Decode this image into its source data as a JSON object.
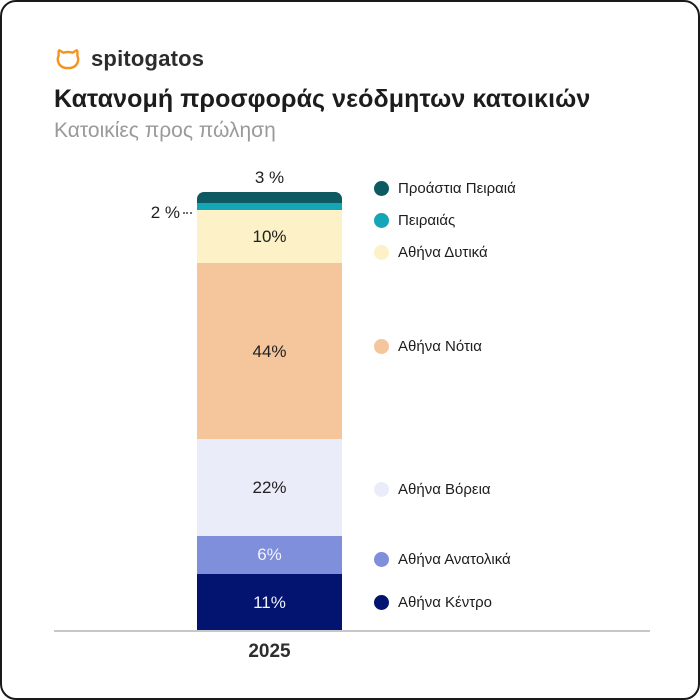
{
  "card": {
    "brand": {
      "name": "spitogatos",
      "logo_color": "#f6921e"
    },
    "title": "Κατανομή προσφοράς νεόδμητων κατοικιών",
    "subtitle": "Κατοικίες προς πώληση"
  },
  "chart_data": {
    "type": "bar",
    "stacked": true,
    "units": "%",
    "categories": [
      "2025"
    ],
    "x_tick_labels": [
      "2025"
    ],
    "series": [
      {
        "name": "Προάστια Πειραιά",
        "values": [
          3
        ],
        "color": "#0d5a63",
        "label": "3 %",
        "label_position": "above",
        "label_color": "#1f1f1f"
      },
      {
        "name": "Πειραιάς",
        "values": [
          2
        ],
        "color": "#14a6b8",
        "label": "2 %",
        "label_position": "left",
        "label_color": "#1f1f1f"
      },
      {
        "name": "Αθήνα Δυτικά",
        "values": [
          10
        ],
        "color": "#fcf1c7",
        "label": "10%",
        "label_position": "inside",
        "label_color": "#212121"
      },
      {
        "name": "Αθήνα Νότια",
        "values": [
          44
        ],
        "color": "#f5c59b",
        "label": "44%",
        "label_position": "inside",
        "label_color": "#212121"
      },
      {
        "name": "Αθήνα Βόρεια",
        "values": [
          22
        ],
        "color": "#ebecfa",
        "label": "22%",
        "label_position": "inside",
        "label_color": "#212121"
      },
      {
        "name": "Αθήνα Ανατολικά",
        "values": [
          6
        ],
        "color": "#7f8fdb",
        "label": "6%",
        "label_position": "inside",
        "label_color": "#f2f3fd"
      },
      {
        "name": "Αθήνα Κέντρο",
        "values": [
          11
        ],
        "color": "#02146f",
        "label": "11%",
        "label_position": "inside",
        "label_color": "#f2f3fd"
      }
    ],
    "title": "Κατανομή προσφοράς νεόδμητων κατοικιών",
    "subtitle": "Κατοικίες προς πώληση",
    "xlabel": "",
    "ylabel": "",
    "legend_position": "right",
    "axis_line_color": "#c7c7c7",
    "grid": false
  }
}
